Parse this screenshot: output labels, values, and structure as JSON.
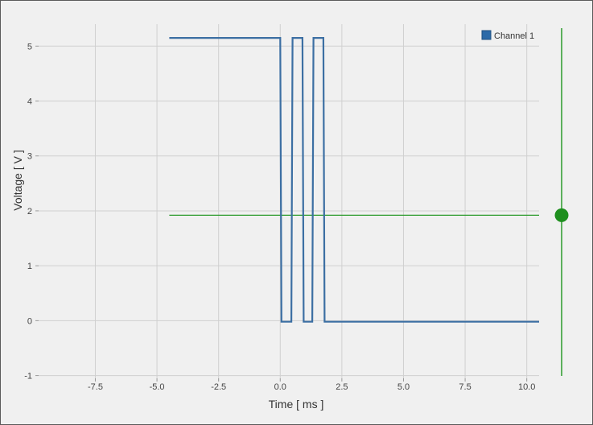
{
  "chart_data": {
    "type": "line",
    "xlabel": "Time [ ms ]",
    "ylabel": "Voltage [ V ]",
    "xlim": [
      -9.8,
      10.5
    ],
    "ylim": [
      -1.05,
      5.4
    ],
    "xticks": [
      -7.5,
      -5.0,
      -2.5,
      0.0,
      2.5,
      5.0,
      7.5,
      10.0
    ],
    "xtick_labels": [
      "-7.5",
      "-5.0",
      "-2.5",
      "0.0",
      "2.5",
      "5.0",
      "7.5",
      "10.0"
    ],
    "yticks": [
      -1,
      0,
      1,
      2,
      3,
      4,
      5
    ],
    "ytick_labels": [
      "-1",
      "0",
      "1",
      "2",
      "3",
      "4",
      "5"
    ],
    "grid": true,
    "legend": "top-right",
    "series": [
      {
        "name": "Channel 1",
        "color": "#3c6fa3",
        "x": [
          -4.5,
          0.0,
          0.05,
          0.45,
          0.5,
          0.9,
          0.95,
          1.3,
          1.35,
          1.75,
          1.8,
          10.5
        ],
        "y": [
          5.15,
          5.15,
          -0.02,
          -0.02,
          5.15,
          5.15,
          -0.02,
          -0.02,
          5.15,
          5.15,
          -0.02,
          -0.02
        ]
      }
    ],
    "trigger": {
      "level": 1.92,
      "x_start": -4.5,
      "x_end": 10.5,
      "color": "#2a9a2a"
    }
  }
}
